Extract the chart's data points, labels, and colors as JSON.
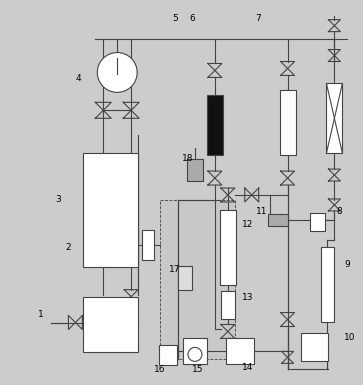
{
  "bg_color": "#cccccc",
  "line_color": "#444444",
  "white": "#ffffff",
  "gray_light": "#e0e0e0",
  "gray_med": "#bbbbbb",
  "dark": "#111111",
  "figsize": [
    3.63,
    3.85
  ],
  "dpi": 100
}
